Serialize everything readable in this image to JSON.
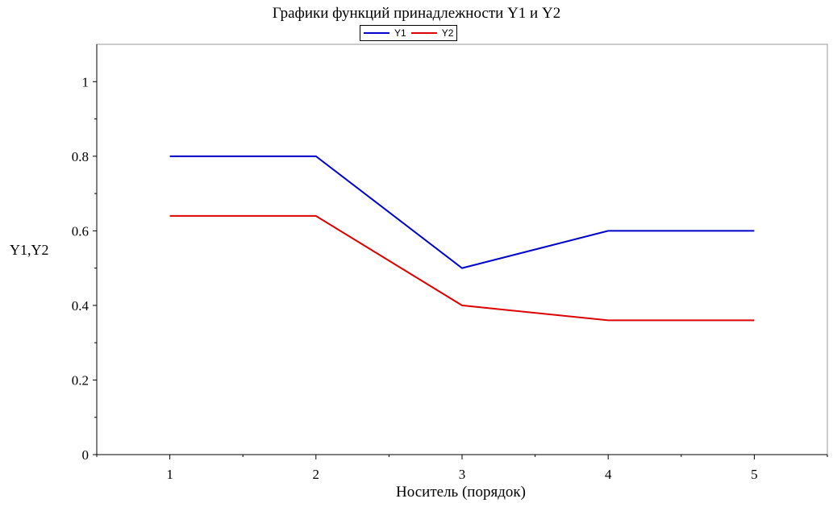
{
  "chart_data": {
    "type": "line",
    "title": "Графики функций принадлежности Y1 и Y2",
    "xlabel": "Носитель (порядок)",
    "ylabel": "Y1,Y2",
    "x": [
      1,
      2,
      3,
      4,
      5
    ],
    "series": [
      {
        "name": "Y1",
        "color": "#0000cc",
        "values": [
          0.8,
          0.8,
          0.5,
          0.6,
          0.6
        ]
      },
      {
        "name": "Y2",
        "color": "#dd0000",
        "values": [
          0.64,
          0.64,
          0.4,
          0.36,
          0.36
        ]
      }
    ],
    "xlim": [
      0.5,
      5.5
    ],
    "ylim": [
      0,
      1.1
    ],
    "xticks": [
      "1",
      "2",
      "3",
      "4",
      "5"
    ],
    "yticks": [
      "0",
      "0.2",
      "0.4",
      "0.6",
      "0.8",
      "1"
    ],
    "grid": false,
    "legend": "top-center"
  }
}
